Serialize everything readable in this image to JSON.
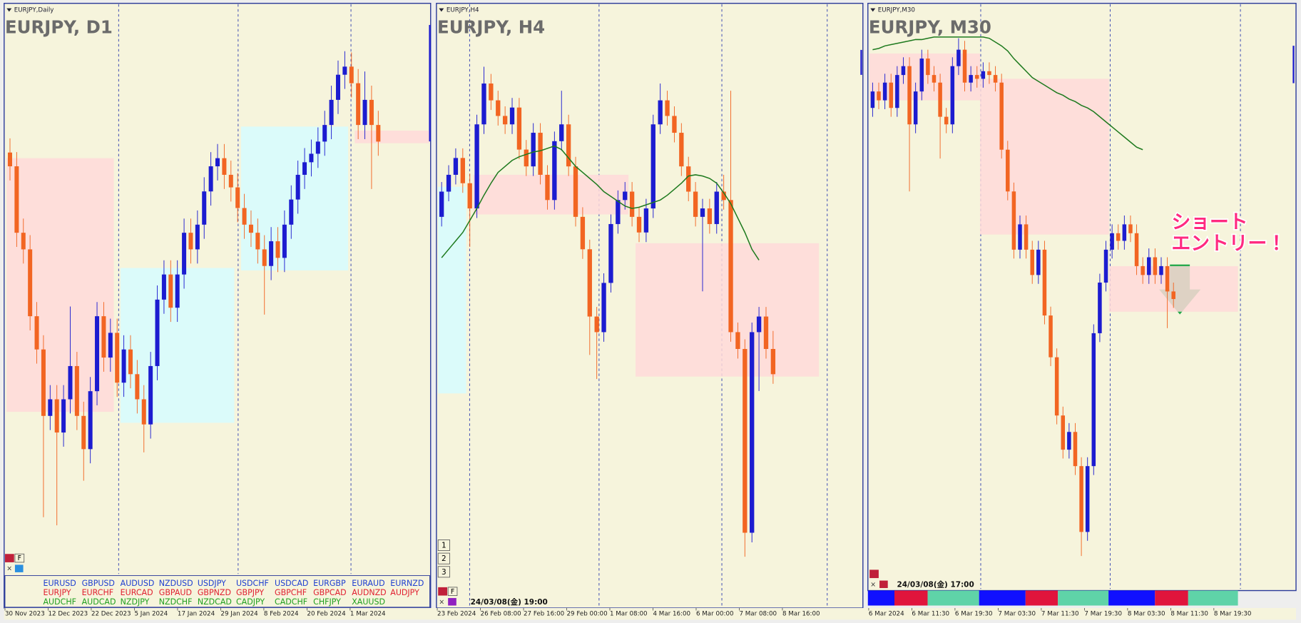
{
  "chart_data": [
    {
      "type": "candlestick",
      "header": "EURJPY,Daily",
      "title": "EURJPY, D1",
      "ylim": [
        152,
        166
      ],
      "bull_color": "#1c1cd0",
      "bear_color": "#f26522",
      "ohlc": [
        [
          162.4,
          162.75,
          161.71,
          162.06
        ],
        [
          162.06,
          162.41,
          160.07,
          160.42
        ],
        [
          160.42,
          160.77,
          159.66,
          160.01
        ],
        [
          160.01,
          160.36,
          158.01,
          158.36
        ],
        [
          158.36,
          158.71,
          157.19,
          157.54
        ],
        [
          157.54,
          157.89,
          153.4,
          155.9
        ],
        [
          155.9,
          156.66,
          155.55,
          156.31
        ],
        [
          156.31,
          156.66,
          153.2,
          155.49
        ],
        [
          155.49,
          156.66,
          155.14,
          156.31
        ],
        [
          156.31,
          158.6,
          155.96,
          157.13
        ],
        [
          157.13,
          157.48,
          155.55,
          155.9
        ],
        [
          155.9,
          156.25,
          154.3,
          155.08
        ],
        [
          155.08,
          156.86,
          154.73,
          156.51
        ],
        [
          156.51,
          158.71,
          156.16,
          158.36
        ],
        [
          158.36,
          158.71,
          156.99,
          157.34
        ],
        [
          157.34,
          158.3,
          156.99,
          157.95
        ],
        [
          157.95,
          158.3,
          156.37,
          156.72
        ],
        [
          156.72,
          157.89,
          156.37,
          157.54
        ],
        [
          157.54,
          157.89,
          156.58,
          156.93
        ],
        [
          156.93,
          157.28,
          155.96,
          156.31
        ],
        [
          156.31,
          156.66,
          155.0,
          155.69
        ],
        [
          155.69,
          157.48,
          155.34,
          157.13
        ],
        [
          157.13,
          159.12,
          156.78,
          158.77
        ],
        [
          158.77,
          159.74,
          158.42,
          159.39
        ],
        [
          159.39,
          159.74,
          158.22,
          158.57
        ],
        [
          158.57,
          159.74,
          158.22,
          159.39
        ],
        [
          159.39,
          160.77,
          159.04,
          160.42
        ],
        [
          160.42,
          160.77,
          159.66,
          160.01
        ],
        [
          160.01,
          160.97,
          159.66,
          160.62
        ],
        [
          160.62,
          161.79,
          160.27,
          161.44
        ],
        [
          161.44,
          162.41,
          161.09,
          162.06
        ],
        [
          162.06,
          162.61,
          161.71,
          162.26
        ],
        [
          162.26,
          162.61,
          161.5,
          161.85
        ],
        [
          161.85,
          162.2,
          161.19,
          161.54
        ],
        [
          161.54,
          161.89,
          160.68,
          161.03
        ],
        [
          161.03,
          161.38,
          160.27,
          160.62
        ],
        [
          160.62,
          160.97,
          160.07,
          160.42
        ],
        [
          160.42,
          160.77,
          159.66,
          160.01
        ],
        [
          160.01,
          160.36,
          158.4,
          159.6
        ],
        [
          159.6,
          160.56,
          159.25,
          160.21
        ],
        [
          160.21,
          160.56,
          159.45,
          159.8
        ],
        [
          159.8,
          160.97,
          159.45,
          160.62
        ],
        [
          160.62,
          161.59,
          160.27,
          161.24
        ],
        [
          161.24,
          162.2,
          160.89,
          161.85
        ],
        [
          161.85,
          162.51,
          161.5,
          162.16
        ],
        [
          162.16,
          162.72,
          161.81,
          162.37
        ],
        [
          162.37,
          163.02,
          162.02,
          162.67
        ],
        [
          162.67,
          163.43,
          162.32,
          163.08
        ],
        [
          163.08,
          164.05,
          162.73,
          163.7
        ],
        [
          163.7,
          164.67,
          163.35,
          164.32
        ],
        [
          164.32,
          164.9,
          163.97,
          164.52
        ],
        [
          164.52,
          164.87,
          163.76,
          164.11
        ],
        [
          164.11,
          164.46,
          162.73,
          163.08
        ],
        [
          163.08,
          164.4,
          162.73,
          163.7
        ],
        [
          163.7,
          164.05,
          161.5,
          163.08
        ],
        [
          163.08,
          163.43,
          162.32,
          162.67
        ]
      ],
      "zones": [
        {
          "from": 0,
          "to": 16,
          "high": 162.26,
          "low": 156.0,
          "color": "#ffd9d9"
        },
        {
          "from": 17,
          "to": 34,
          "high": 159.55,
          "low": 155.73,
          "color": "#d6fbff"
        },
        {
          "from": 35,
          "to": 51,
          "high": 163.04,
          "low": 159.49,
          "color": "#d6fbff"
        },
        {
          "from": 52,
          "to": 65,
          "high": 162.94,
          "low": 162.63,
          "color": "#ffd9d9"
        }
      ],
      "xtick_labels": [
        "30 Nov 2023",
        "12 Dec 2023",
        "22 Dec 2023",
        "5 Jan 2024",
        "17 Jan 2024",
        "29 Jan 2024",
        "8 Feb 2024",
        "20 Feb 2024",
        "1 Mar 2024"
      ]
    },
    {
      "type": "candlestick",
      "header": "EURJPY,H4",
      "title": "EURJPY, H4",
      "ylim": [
        159.8,
        164.8
      ],
      "bull_color": "#1c1cd0",
      "bear_color": "#f26522",
      "ma_color": "#1e7a1e",
      "ohlc": [
        [
          163.05,
          163.34,
          162.97,
          163.26
        ],
        [
          163.26,
          163.48,
          163.18,
          163.4
        ],
        [
          163.4,
          163.62,
          163.32,
          163.54
        ],
        [
          163.54,
          163.62,
          163.25,
          163.33
        ],
        [
          163.33,
          163.41,
          162.8,
          163.12
        ],
        [
          163.12,
          163.9,
          163.04,
          163.82
        ],
        [
          163.82,
          164.3,
          163.74,
          164.16
        ],
        [
          164.16,
          164.24,
          163.94,
          164.02
        ],
        [
          164.02,
          164.1,
          163.81,
          163.89
        ],
        [
          163.89,
          163.97,
          163.74,
          163.82
        ],
        [
          163.82,
          164.04,
          163.74,
          163.96
        ],
        [
          163.96,
          164.04,
          163.53,
          163.61
        ],
        [
          163.61,
          163.69,
          163.39,
          163.47
        ],
        [
          163.47,
          163.83,
          163.39,
          163.75
        ],
        [
          163.75,
          163.83,
          163.32,
          163.4
        ],
        [
          163.4,
          163.48,
          163.11,
          163.19
        ],
        [
          163.19,
          163.76,
          163.11,
          163.68
        ],
        [
          163.68,
          164.1,
          163.6,
          163.82
        ],
        [
          163.82,
          163.9,
          163.39,
          163.47
        ],
        [
          163.47,
          163.55,
          162.97,
          163.05
        ],
        [
          163.05,
          163.13,
          162.7,
          162.78
        ],
        [
          162.78,
          162.86,
          161.9,
          162.22
        ],
        [
          162.22,
          162.3,
          161.7,
          162.09
        ],
        [
          162.09,
          162.58,
          162.01,
          162.5
        ],
        [
          162.5,
          163.07,
          162.42,
          162.99
        ],
        [
          162.99,
          163.27,
          162.91,
          163.19
        ],
        [
          163.19,
          163.34,
          163.11,
          163.26
        ],
        [
          163.26,
          163.34,
          162.97,
          163.05
        ],
        [
          163.05,
          163.13,
          162.84,
          162.92
        ],
        [
          162.92,
          163.2,
          162.84,
          163.12
        ],
        [
          163.12,
          163.9,
          163.04,
          163.82
        ],
        [
          163.82,
          164.16,
          163.74,
          164.02
        ],
        [
          164.02,
          164.1,
          163.81,
          163.89
        ],
        [
          163.89,
          163.97,
          163.67,
          163.75
        ],
        [
          163.75,
          163.83,
          163.39,
          163.47
        ],
        [
          163.47,
          163.55,
          163.18,
          163.26
        ],
        [
          163.26,
          163.34,
          162.97,
          163.05
        ],
        [
          163.05,
          163.2,
          162.43,
          163.12
        ],
        [
          163.12,
          163.2,
          162.91,
          162.99
        ],
        [
          162.99,
          163.34,
          162.91,
          163.26
        ],
        [
          163.26,
          163.4,
          163.11,
          163.19
        ],
        [
          163.19,
          164.1,
          162.01,
          162.09
        ],
        [
          162.09,
          162.17,
          161.87,
          161.95
        ],
        [
          161.95,
          162.03,
          160.22,
          160.42
        ],
        [
          160.42,
          162.17,
          160.34,
          162.09
        ],
        [
          162.09,
          162.3,
          161.6,
          162.22
        ],
        [
          162.22,
          162.3,
          161.87,
          161.95
        ],
        [
          161.95,
          162.1,
          161.66,
          161.74
        ]
      ],
      "ma": [
        162.71,
        162.78,
        162.85,
        162.92,
        163.02,
        163.12,
        163.23,
        163.33,
        163.42,
        163.47,
        163.52,
        163.55,
        163.57,
        163.59,
        163.6,
        163.62,
        163.64,
        163.61,
        163.54,
        163.47,
        163.42,
        163.37,
        163.32,
        163.26,
        163.22,
        163.18,
        163.14,
        163.12,
        163.13,
        163.15,
        163.17,
        163.19,
        163.23,
        163.28,
        163.33,
        163.39,
        163.4,
        163.39,
        163.37,
        163.33,
        163.25,
        163.16,
        163.04,
        162.92,
        162.78,
        162.69,
        null,
        null
      ],
      "zones": [
        {
          "from": 0,
          "to": 4,
          "high": 163.3,
          "low": 161.58,
          "color": "#d6fbff"
        },
        {
          "from": 5,
          "to": 27,
          "high": 163.4,
          "low": 163.07,
          "color": "#ffd9d9"
        },
        {
          "from": 28,
          "to": 54,
          "high": 162.83,
          "low": 161.72,
          "color": "#ffd9d9"
        }
      ],
      "xtick_labels": [
        "23 Feb 2024",
        "26 Feb 08:00",
        "27 Feb 16:00",
        "29 Feb 00:00",
        "1 Mar 08:00",
        "4 Mar 16:00",
        "6 Mar 00:00",
        "7 Mar 08:00",
        "8 Mar 16:00"
      ],
      "timestamp": "24/03/08(金) 19:00"
    },
    {
      "type": "candlestick",
      "header": "EURJPY,M30",
      "title": "EURJPY, M30",
      "ylim": [
        160.0,
        164.6
      ],
      "bull_color": "#1c1cd0",
      "bear_color": "#f26522",
      "ma_color": "#1e7a1e",
      "ohlc": [
        [
          163.8,
          164.0,
          163.73,
          163.93
        ],
        [
          163.93,
          164.0,
          163.79,
          163.86
        ],
        [
          163.86,
          164.07,
          163.79,
          164.0
        ],
        [
          164.0,
          164.07,
          163.73,
          163.8
        ],
        [
          163.8,
          164.13,
          163.73,
          164.06
        ],
        [
          164.06,
          164.2,
          163.99,
          164.13
        ],
        [
          164.13,
          164.2,
          163.14,
          163.67
        ],
        [
          163.67,
          164.0,
          163.6,
          163.93
        ],
        [
          163.93,
          164.26,
          163.86,
          164.19
        ],
        [
          164.19,
          164.26,
          163.99,
          164.06
        ],
        [
          164.06,
          164.13,
          163.93,
          164.0
        ],
        [
          164.0,
          164.07,
          163.4,
          163.73
        ],
        [
          163.73,
          163.8,
          163.6,
          163.67
        ],
        [
          163.67,
          164.2,
          163.6,
          164.13
        ],
        [
          164.13,
          164.35,
          164.06,
          164.26
        ],
        [
          164.26,
          164.33,
          163.93,
          164.0
        ],
        [
          164.0,
          164.13,
          163.93,
          164.06
        ],
        [
          164.06,
          164.13,
          163.96,
          164.03
        ],
        [
          164.03,
          164.16,
          163.96,
          164.09
        ],
        [
          164.09,
          164.16,
          163.99,
          164.06
        ],
        [
          164.06,
          164.13,
          163.93,
          164.0
        ],
        [
          164.0,
          164.07,
          163.4,
          163.47
        ],
        [
          163.47,
          163.54,
          163.07,
          163.14
        ],
        [
          163.14,
          163.21,
          162.61,
          162.68
        ],
        [
          162.68,
          162.95,
          162.61,
          162.88
        ],
        [
          162.88,
          162.95,
          162.61,
          162.68
        ],
        [
          162.68,
          162.75,
          162.41,
          162.48
        ],
        [
          162.48,
          162.75,
          162.41,
          162.68
        ],
        [
          162.68,
          162.75,
          162.09,
          162.16
        ],
        [
          162.16,
          162.23,
          161.76,
          161.83
        ],
        [
          161.83,
          161.9,
          161.3,
          161.37
        ],
        [
          161.37,
          161.44,
          161.03,
          161.1
        ],
        [
          161.1,
          161.31,
          161.03,
          161.24
        ],
        [
          161.24,
          161.31,
          160.9,
          160.97
        ],
        [
          160.97,
          161.04,
          160.26,
          160.45
        ],
        [
          160.45,
          161.04,
          160.38,
          160.97
        ],
        [
          160.97,
          162.09,
          160.9,
          162.02
        ],
        [
          162.02,
          162.49,
          161.95,
          162.42
        ],
        [
          162.42,
          162.75,
          162.35,
          162.68
        ],
        [
          162.68,
          162.88,
          162.61,
          162.81
        ],
        [
          162.81,
          162.88,
          162.68,
          162.75
        ],
        [
          162.75,
          162.95,
          162.68,
          162.88
        ],
        [
          162.88,
          162.95,
          162.74,
          162.81
        ],
        [
          162.81,
          162.88,
          162.48,
          162.55
        ],
        [
          162.55,
          162.62,
          162.41,
          162.48
        ],
        [
          162.48,
          162.69,
          162.41,
          162.62
        ],
        [
          162.62,
          162.69,
          162.41,
          162.48
        ],
        [
          162.48,
          162.62,
          162.41,
          162.55
        ],
        [
          162.55,
          162.62,
          162.06,
          162.35
        ],
        [
          162.35,
          162.42,
          162.22,
          162.29
        ]
      ],
      "ma": [
        164.26,
        164.27,
        164.29,
        164.3,
        164.31,
        164.32,
        164.33,
        164.34,
        164.34,
        164.35,
        164.36,
        164.36,
        164.36,
        164.36,
        164.36,
        164.36,
        164.36,
        164.36,
        164.36,
        164.35,
        164.32,
        164.29,
        164.25,
        164.19,
        164.14,
        164.09,
        164.04,
        164.01,
        163.98,
        163.95,
        163.92,
        163.9,
        163.87,
        163.85,
        163.82,
        163.8,
        163.77,
        163.73,
        163.69,
        163.65,
        163.61,
        163.57,
        163.53,
        163.49,
        163.47,
        null,
        null,
        null,
        null,
        null
      ],
      "zones": [
        {
          "from": 0,
          "to": 18,
          "high": 164.23,
          "low": 163.86,
          "color": "#ffd9d9"
        },
        {
          "from": 18,
          "to": 39,
          "high": 164.03,
          "low": 162.8,
          "color": "#ffd9d9"
        },
        {
          "from": 39,
          "to": 60,
          "high": 162.55,
          "low": 162.19,
          "color": "#ffd9d9"
        }
      ],
      "xtick_labels": [
        "6 Mar 2024",
        "6 Mar 11:30",
        "6 Mar 19:30",
        "7 Mar 03:30",
        "7 Mar 11:30",
        "7 Mar 19:30",
        "8 Mar 03:30",
        "8 Mar 11:30",
        "8 Mar 19:30"
      ],
      "timestamp": "24/03/08(金) 17:00",
      "annotation": [
        "ショート",
        "エントリー！"
      ]
    }
  ],
  "ui": {
    "buttons": [
      "1",
      "2",
      "3"
    ],
    "f_label": "F",
    "symbols": [
      [
        "EURUSD",
        "GBPUSD",
        "AUDUSD",
        "NZDUSD",
        "USDJPY",
        "USDCHF",
        "USDCAD",
        "EURGBP",
        "EURAUD",
        "EURNZD"
      ],
      [
        "EURJPY",
        "EURCHF",
        "EURCAD",
        "GBPAUD",
        "GBPNZD",
        "GBPJPY",
        "GBPCHF",
        "GBPCAD",
        "AUDNZD",
        "AUDJPY"
      ],
      [
        "AUDCHF",
        "AUDCAD",
        "NZDJPY",
        "NZDCHF",
        "NZDCAD",
        "CADJPY",
        "CADCHF",
        "CHFJPY",
        "XAUUSD"
      ]
    ],
    "symbol_colors": [
      "#2040d0",
      "#e02030",
      "#20a020"
    ]
  }
}
